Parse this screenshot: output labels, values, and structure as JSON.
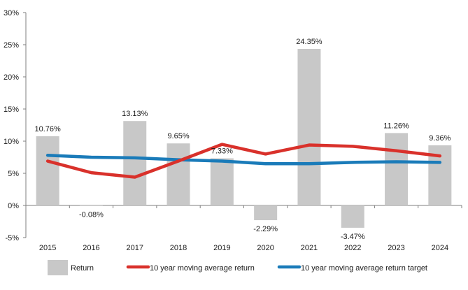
{
  "chart_data": {
    "type": "bar",
    "title": "",
    "xlabel": "",
    "ylabel": "",
    "ylim": [
      -5,
      30
    ],
    "yticks": [
      -5,
      0,
      5,
      10,
      15,
      20,
      25,
      30
    ],
    "ytick_labels": [
      "-5%",
      "0%",
      "5%",
      "10%",
      "15%",
      "20%",
      "25%",
      "30%"
    ],
    "categories": [
      "2015",
      "2016",
      "2017",
      "2018",
      "2019",
      "2020",
      "2021",
      "2022",
      "2023",
      "2024"
    ],
    "series": [
      {
        "name": "Return",
        "kind": "bar",
        "color": "#c8c8c8",
        "values": [
          10.76,
          -0.08,
          13.13,
          9.65,
          7.33,
          -2.29,
          24.35,
          -3.47,
          11.26,
          9.36
        ],
        "labels": [
          "10.76%",
          "-0.08%",
          "13.13%",
          "9.65%",
          "7.33%",
          "-2.29%",
          "24.35%",
          "-3.47%",
          "11.26%",
          "9.36%"
        ]
      },
      {
        "name": "10 year moving average return",
        "kind": "line",
        "color": "#d9312b",
        "values": [
          6.9,
          5.1,
          4.4,
          6.9,
          9.5,
          8.0,
          9.4,
          9.2,
          8.5,
          7.7
        ]
      },
      {
        "name": "10 year moving average return target",
        "kind": "line",
        "color": "#1a7bb9",
        "values": [
          7.8,
          7.5,
          7.4,
          7.1,
          6.9,
          6.5,
          6.5,
          6.7,
          6.8,
          6.7
        ]
      }
    ],
    "legend_position": "bottom"
  }
}
